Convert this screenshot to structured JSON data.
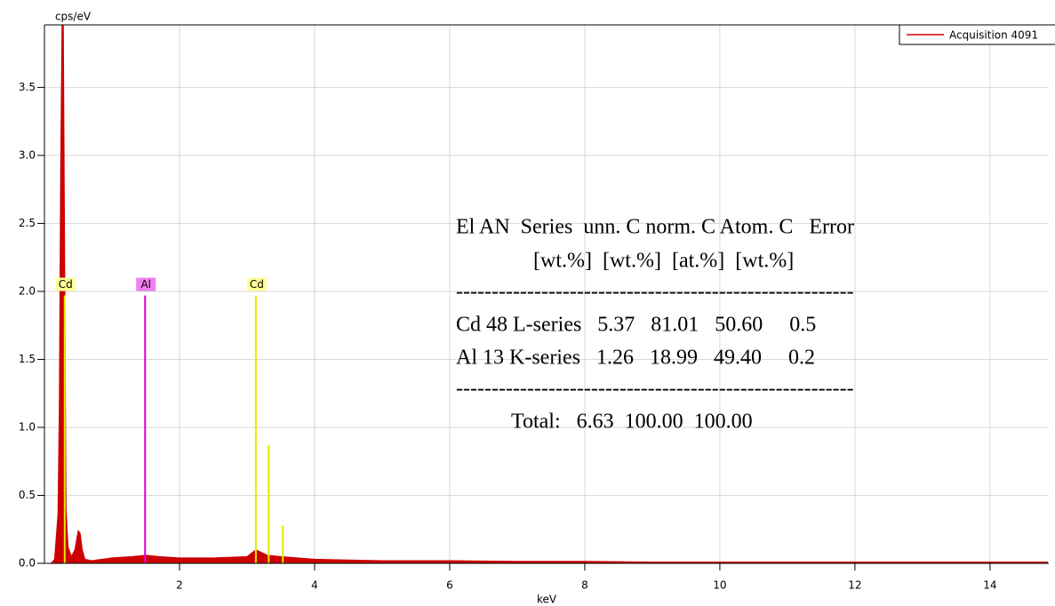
{
  "chart_data": {
    "type": "spectrum",
    "y_label": "cps/eV",
    "x_label": "keV",
    "xlim": [
      0,
      14.87
    ],
    "ylim": [
      0,
      3.96
    ],
    "xticks": [
      2,
      4,
      6,
      8,
      10,
      12,
      14
    ],
    "yticks": [
      {
        "value": 0,
        "label": "0.0"
      },
      0.5,
      {
        "value": 1,
        "label": "1.0"
      },
      1.5,
      {
        "value": 2,
        "label": "2.0"
      },
      2.5,
      {
        "value": 3,
        "label": "3.0"
      },
      3.5
    ],
    "grid": true,
    "legend": "top-right",
    "series": [
      {
        "name": "Acquisition 4091",
        "color": "#cc0000",
        "x": [
          0.1,
          0.15,
          0.2,
          0.22,
          0.24,
          0.26,
          0.28,
          0.3,
          0.32,
          0.35,
          0.4,
          0.45,
          0.5,
          0.53,
          0.56,
          0.6,
          0.7,
          1.0,
          1.3,
          1.5,
          1.7,
          2.0,
          2.5,
          3.0,
          3.13,
          3.3,
          3.5,
          4.0,
          5,
          6,
          7,
          8,
          9,
          10,
          11,
          12,
          13,
          14,
          14.85
        ],
        "values": [
          0.0,
          0.03,
          0.36,
          1.15,
          2.9,
          3.96,
          3.96,
          2.2,
          0.4,
          0.12,
          0.05,
          0.1,
          0.24,
          0.22,
          0.1,
          0.03,
          0.02,
          0.04,
          0.05,
          0.06,
          0.05,
          0.04,
          0.04,
          0.05,
          0.1,
          0.06,
          0.05,
          0.03,
          0.02,
          0.02,
          0.015,
          0.015,
          0.01,
          0.01,
          0.01,
          0.01,
          0.01,
          0.01,
          0.01
        ]
      }
    ],
    "markers": [
      {
        "label": "Cd",
        "x": 0.3,
        "height": 1.97,
        "color": "#e8e800",
        "label_color": "#ffff99"
      },
      {
        "label": "Al",
        "x": 1.49,
        "height": 1.97,
        "color": "#e000e0",
        "label_color": "#f080f0"
      },
      {
        "label": "Cd",
        "x": 3.13,
        "height": 1.97,
        "color": "#e8e800",
        "label_color": "#ffff99"
      },
      {
        "label": null,
        "x": 3.32,
        "height": 0.87,
        "color": "#e8e800",
        "label_color": null
      },
      {
        "label": null,
        "x": 3.53,
        "height": 0.28,
        "color": "#e8e800",
        "label_color": null
      }
    ],
    "table_lines": [
      "El AN  Series  unn. C norm. C Atom. C   Error",
      "[wt.%]  [wt.%]  [at.%]  [wt.%]",
      "--------------------------------------------------------",
      "Cd 48 L-series   5.37   81.01   50.60     0.5",
      "Al 13 K-series   1.26   18.99   49.40     0.2",
      "--------------------------------------------------------",
      "Total:   6.63  100.00  100.00"
    ]
  }
}
